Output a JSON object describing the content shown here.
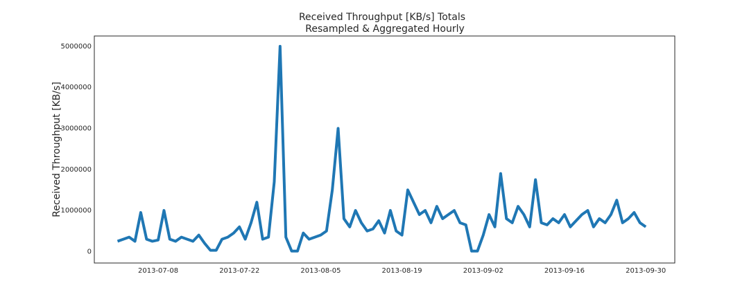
{
  "chart_data": {
    "type": "line",
    "title": "Received Throughput [KB/s] Totals",
    "subtitle": "Resampled & Aggregated Hourly",
    "y_label": "Received Throughput [KB/s]",
    "x": [
      "2013-07-01",
      "2013-07-02",
      "2013-07-03",
      "2013-07-04",
      "2013-07-05",
      "2013-07-06",
      "2013-07-07",
      "2013-07-08",
      "2013-07-09",
      "2013-07-10",
      "2013-07-11",
      "2013-07-12",
      "2013-07-13",
      "2013-07-14",
      "2013-07-15",
      "2013-07-16",
      "2013-07-17",
      "2013-07-18",
      "2013-07-19",
      "2013-07-20",
      "2013-07-21",
      "2013-07-22",
      "2013-07-23",
      "2013-07-24",
      "2013-07-25",
      "2013-07-26",
      "2013-07-27",
      "2013-07-28",
      "2013-07-29",
      "2013-07-30",
      "2013-07-31",
      "2013-08-01",
      "2013-08-02",
      "2013-08-03",
      "2013-08-04",
      "2013-08-05",
      "2013-08-06",
      "2013-08-07",
      "2013-08-08",
      "2013-08-09",
      "2013-08-10",
      "2013-08-11",
      "2013-08-12",
      "2013-08-13",
      "2013-08-14",
      "2013-08-15",
      "2013-08-16",
      "2013-08-17",
      "2013-08-18",
      "2013-08-19",
      "2013-08-20",
      "2013-08-21",
      "2013-08-22",
      "2013-08-23",
      "2013-08-24",
      "2013-08-25",
      "2013-08-26",
      "2013-08-27",
      "2013-08-28",
      "2013-08-29",
      "2013-08-30",
      "2013-08-31",
      "2013-09-01",
      "2013-09-02",
      "2013-09-03",
      "2013-09-04",
      "2013-09-05",
      "2013-09-06",
      "2013-09-07",
      "2013-09-08",
      "2013-09-09",
      "2013-09-10",
      "2013-09-11",
      "2013-09-12",
      "2013-09-13",
      "2013-09-14",
      "2013-09-15",
      "2013-09-16",
      "2013-09-17",
      "2013-09-18",
      "2013-09-19",
      "2013-09-20",
      "2013-09-21",
      "2013-09-22",
      "2013-09-23",
      "2013-09-24",
      "2013-09-25",
      "2013-09-26",
      "2013-09-27",
      "2013-09-28",
      "2013-09-29",
      "2013-09-30"
    ],
    "series": [
      {
        "name": "Received Throughput [KB/s]",
        "color": "#1f77b4",
        "values": [
          250000,
          300000,
          350000,
          250000,
          950000,
          300000,
          250000,
          280000,
          1000000,
          300000,
          250000,
          350000,
          300000,
          250000,
          400000,
          200000,
          30000,
          30000,
          300000,
          350000,
          450000,
          600000,
          300000,
          700000,
          1200000,
          300000,
          350000,
          1700000,
          5000000,
          350000,
          10000,
          10000,
          450000,
          300000,
          350000,
          400000,
          500000,
          1500000,
          3000000,
          800000,
          600000,
          1000000,
          700000,
          500000,
          550000,
          750000,
          450000,
          1000000,
          500000,
          400000,
          1500000,
          1200000,
          900000,
          1000000,
          700000,
          1100000,
          800000,
          900000,
          1000000,
          700000,
          650000,
          10000,
          10000,
          400000,
          900000,
          600000,
          1900000,
          800000,
          700000,
          1100000,
          900000,
          600000,
          1750000,
          700000,
          650000,
          800000,
          700000,
          900000,
          600000,
          750000,
          900000,
          1000000,
          600000,
          800000,
          700000,
          900000,
          1250000,
          700000,
          800000,
          950000,
          700000,
          600000
        ]
      }
    ],
    "xlim": [
      "2013-06-27",
      "2013-10-05"
    ],
    "xticks": [
      "2013-07-08",
      "2013-07-22",
      "2013-08-05",
      "2013-08-19",
      "2013-09-02",
      "2013-09-16",
      "2013-09-30"
    ],
    "ylim": [
      -280000,
      5250000
    ],
    "yticks": [
      0,
      1000000,
      2000000,
      3000000,
      4000000,
      5000000
    ],
    "grid": false
  }
}
